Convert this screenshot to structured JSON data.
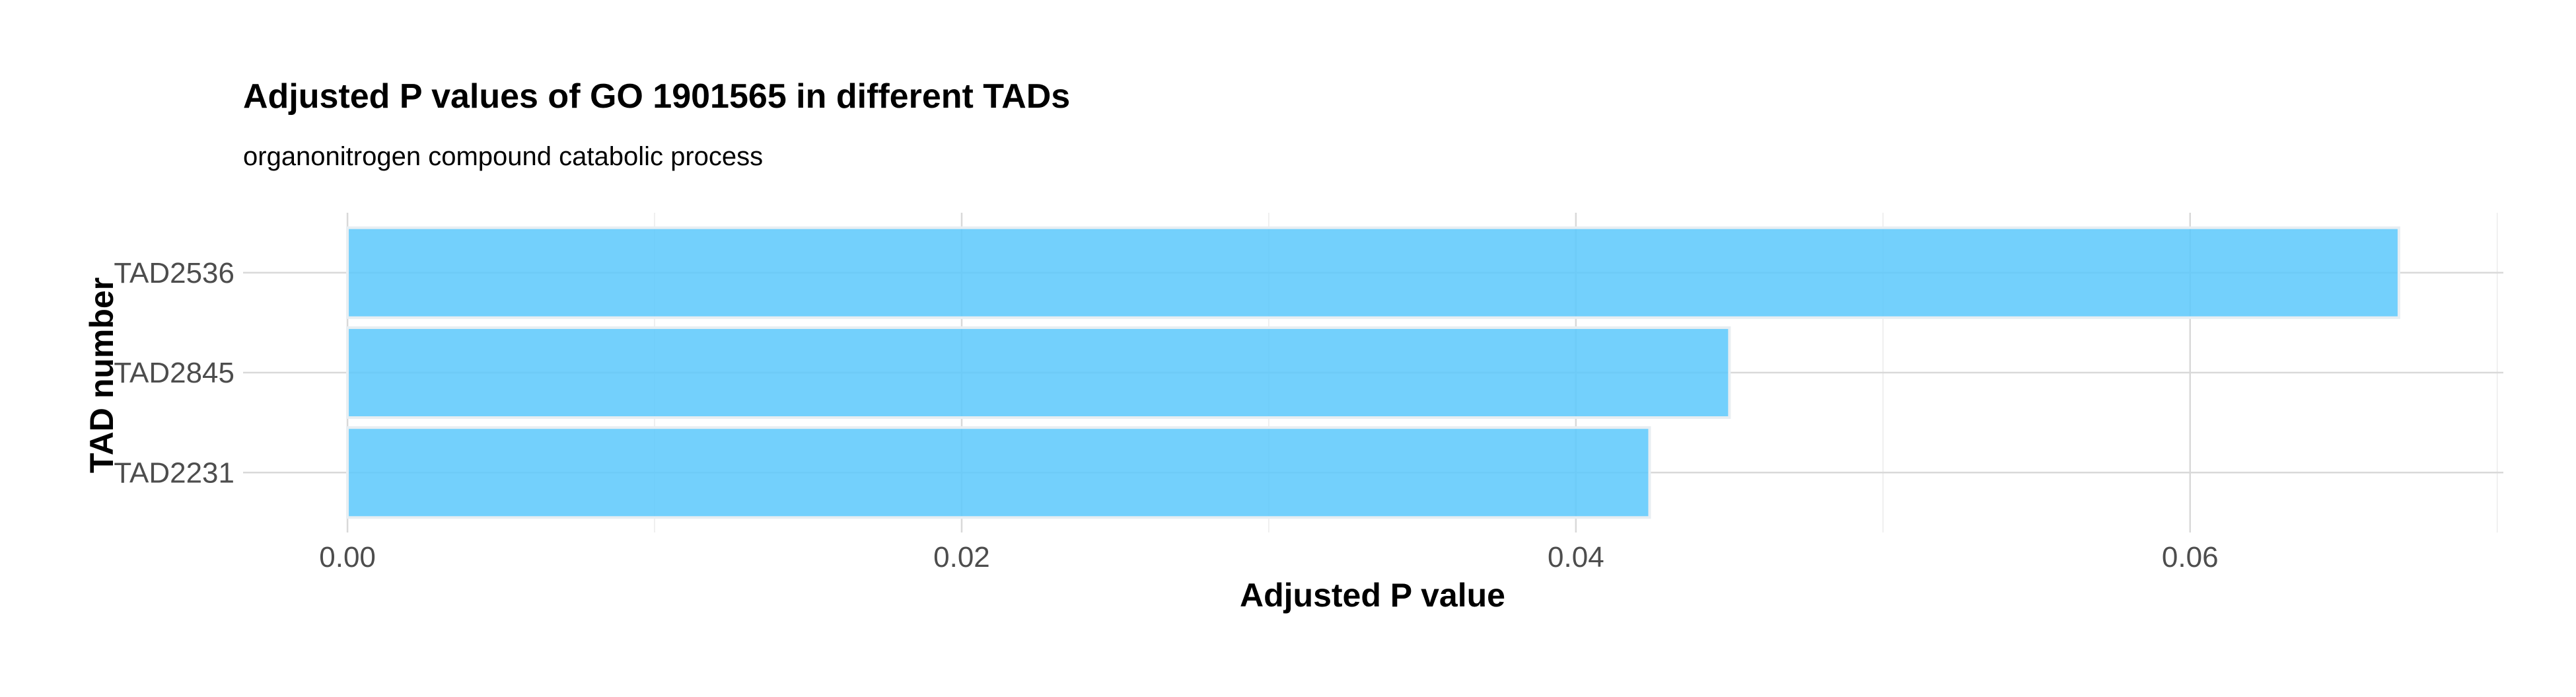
{
  "chart_data": {
    "type": "bar",
    "orientation": "horizontal",
    "title": "Adjusted P values of GO 1901565 in different TADs",
    "subtitle": "organonitrogen compound catabolic process",
    "xlabel": "Adjusted P value",
    "ylabel": "TAD number",
    "categories": [
      "TAD2536",
      "TAD2845",
      "TAD2231"
    ],
    "values": [
      0.0668,
      0.045,
      0.0424
    ],
    "xlim": [
      -0.0034,
      0.0702
    ],
    "x_ticks": [
      0.0,
      0.02,
      0.04,
      0.06
    ],
    "x_tick_labels": [
      "0.00",
      "0.02",
      "0.04",
      "0.06"
    ],
    "x_minor_ticks": [
      0.01,
      0.03,
      0.05,
      0.07
    ],
    "grid": true,
    "legend": "none",
    "bar_color": "#5bc8fb"
  }
}
